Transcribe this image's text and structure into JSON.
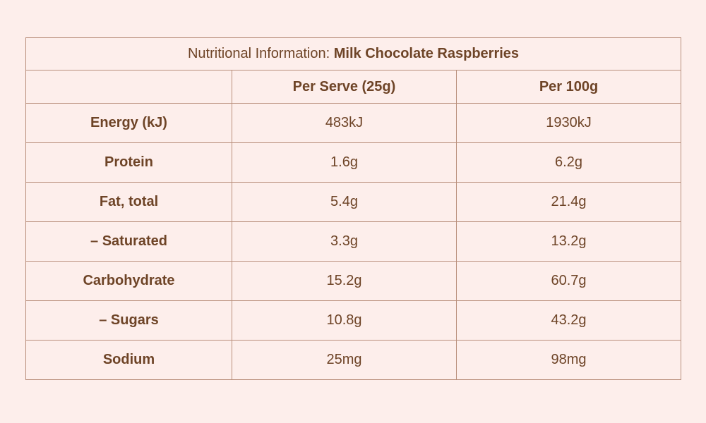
{
  "table": {
    "title_prefix": "Nutritional Information: ",
    "title_product": "Milk Chocolate Raspberries",
    "headers": [
      "",
      "Per Serve (25g)",
      "Per 100g"
    ],
    "rows": [
      {
        "nutrient": "Energy (kJ)",
        "per_serve": "483kJ",
        "per_100g": "1930kJ"
      },
      {
        "nutrient": "Protein",
        "per_serve": "1.6g",
        "per_100g": "6.2g"
      },
      {
        "nutrient": "Fat, total",
        "per_serve": "5.4g",
        "per_100g": "21.4g"
      },
      {
        "nutrient": "– Saturated",
        "per_serve": "3.3g",
        "per_100g": "13.2g"
      },
      {
        "nutrient": "Carbohydrate",
        "per_serve": "15.2g",
        "per_100g": "60.7g"
      },
      {
        "nutrient": "– Sugars",
        "per_serve": "10.8g",
        "per_100g": "43.2g"
      },
      {
        "nutrient": "Sodium",
        "per_serve": "25mg",
        "per_100g": "98mg"
      }
    ]
  },
  "colors": {
    "background": "#fdeeeb",
    "text": "#6e4427",
    "border": "#b98f7c"
  }
}
